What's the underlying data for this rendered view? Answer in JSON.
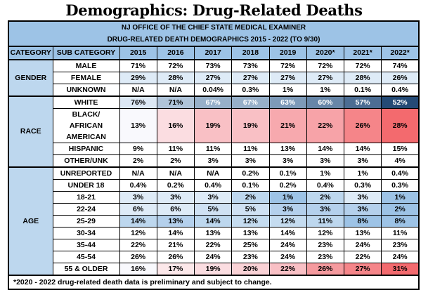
{
  "title": "Demographics: Drug-Related Deaths",
  "header": {
    "line1": "NJ OFFICE OF THE CHIEF STATE MEDICAL EXAMINER",
    "line2": "DRUG-RELATED DEATH DEMOGRAPHICS 2015 - 2022 (TO 9/30)"
  },
  "columns": [
    "CATEGORY",
    "SUB CATEGORY",
    "2015",
    "2016",
    "2017",
    "2018",
    "2019",
    "2020*",
    "2021*",
    "2022*"
  ],
  "groups": [
    {
      "category": "GENDER",
      "rows": [
        {
          "sub": "MALE",
          "values": [
            "71%",
            "72%",
            "73%",
            "73%",
            "72%",
            "72%",
            "72%",
            "74%"
          ],
          "colors": [
            "#ffffff",
            "#ffffff",
            "#ffffff",
            "#ffffff",
            "#ffffff",
            "#ffffff",
            "#ffffff",
            "#ffffff"
          ]
        },
        {
          "sub": "FEMALE",
          "values": [
            "29%",
            "28%",
            "27%",
            "27%",
            "27%",
            "27%",
            "28%",
            "26%"
          ],
          "colors": [
            "#deebf7",
            "#deebf7",
            "#deebf7",
            "#deebf7",
            "#deebf7",
            "#deebf7",
            "#deebf7",
            "#deebf7"
          ]
        },
        {
          "sub": "UNKNOWN",
          "values": [
            "N/A",
            "N/A",
            "0.04%",
            "0.3%",
            "1%",
            "1%",
            "0.1%",
            "0.4%"
          ],
          "colors": [
            "#ffffff",
            "#ffffff",
            "#ffffff",
            "#ffffff",
            "#ffffff",
            "#ffffff",
            "#ffffff",
            "#ffffff"
          ]
        }
      ]
    },
    {
      "category": "RACE",
      "rows": [
        {
          "sub": "WHITE",
          "values": [
            "76%",
            "71%",
            "67%",
            "67%",
            "63%",
            "60%",
            "57%",
            "52%"
          ],
          "colors": [
            "#dce8f4",
            "#afc4d9",
            "#97b0c9",
            "#97b0c9",
            "#7d9ab8",
            "#6786a8",
            "#4c6d93",
            "#244a75"
          ],
          "light": [
            false,
            false,
            true,
            true,
            true,
            true,
            true,
            true
          ]
        },
        {
          "sub": "BLACK/ AFRICAN AMERICAN",
          "values": [
            "13%",
            "16%",
            "19%",
            "19%",
            "21%",
            "22%",
            "26%",
            "28%"
          ],
          "colors": [
            "#f9f9fd",
            "#fbdde1",
            "#f9c0c5",
            "#f9c0c5",
            "#f7a9ae",
            "#f7a3a8",
            "#f58589",
            "#f36a6e"
          ]
        },
        {
          "sub": "HISPANIC",
          "values": [
            "9%",
            "11%",
            "11%",
            "11%",
            "13%",
            "14%",
            "14%",
            "15%"
          ],
          "colors": [
            "#ffffff",
            "#ffffff",
            "#ffffff",
            "#ffffff",
            "#ffffff",
            "#ffffff",
            "#ffffff",
            "#ffffff"
          ]
        },
        {
          "sub": "OTHER/UNK",
          "values": [
            "2%",
            "2%",
            "3%",
            "3%",
            "3%",
            "3%",
            "3%",
            "4%"
          ],
          "colors": [
            "#ffffff",
            "#ffffff",
            "#ffffff",
            "#ffffff",
            "#ffffff",
            "#ffffff",
            "#ffffff",
            "#ffffff"
          ]
        }
      ]
    },
    {
      "category": "AGE",
      "rows": [
        {
          "sub": "UNREPORTED",
          "values": [
            "N/A",
            "N/A",
            "N/A",
            "0.2%",
            "0.1%",
            "1%",
            "1%",
            "0.4%"
          ],
          "colors": [
            "#ffffff",
            "#ffffff",
            "#ffffff",
            "#ffffff",
            "#ffffff",
            "#ffffff",
            "#ffffff",
            "#ffffff"
          ]
        },
        {
          "sub": "UNDER 18",
          "values": [
            "0.4%",
            "0.2%",
            "0.4%",
            "0.1%",
            "0.2%",
            "0.4%",
            "0.3%",
            "0.3%"
          ],
          "colors": [
            "#ffffff",
            "#ffffff",
            "#ffffff",
            "#ffffff",
            "#ffffff",
            "#ffffff",
            "#ffffff",
            "#ffffff"
          ]
        },
        {
          "sub": "18-21",
          "values": [
            "3%",
            "3%",
            "3%",
            "2%",
            "1%",
            "2%",
            "3%",
            "1%"
          ],
          "colors": [
            "#deebf7",
            "#deebf7",
            "#deebf7",
            "#bdd7ee",
            "#9dc3e6",
            "#bdd7ee",
            "#deebf7",
            "#9dc3e6"
          ]
        },
        {
          "sub": "22-24",
          "values": [
            "6%",
            "6%",
            "5%",
            "5%",
            "3%",
            "3%",
            "3%",
            "2%"
          ],
          "colors": [
            "#deebf7",
            "#deebf7",
            "#cfe1f3",
            "#cfe1f3",
            "#b4d0ec",
            "#b4d0ec",
            "#b4d0ec",
            "#9dc3e6"
          ]
        },
        {
          "sub": "25-29",
          "values": [
            "14%",
            "13%",
            "14%",
            "12%",
            "12%",
            "11%",
            "8%",
            "8%"
          ],
          "colors": [
            "#bdd7ee",
            "#b4d0ec",
            "#bdd7ee",
            "#c5dcf0",
            "#c5dcf0",
            "#bdd7ee",
            "#9dc3e6",
            "#9dc3e6"
          ]
        },
        {
          "sub": "30-34",
          "values": [
            "12%",
            "14%",
            "13%",
            "13%",
            "14%",
            "12%",
            "13%",
            "11%"
          ],
          "colors": [
            "#ffffff",
            "#ffffff",
            "#ffffff",
            "#ffffff",
            "#ffffff",
            "#ffffff",
            "#ffffff",
            "#ffffff"
          ]
        },
        {
          "sub": "35-44",
          "values": [
            "22%",
            "21%",
            "22%",
            "25%",
            "24%",
            "23%",
            "24%",
            "23%"
          ],
          "colors": [
            "#ffffff",
            "#ffffff",
            "#ffffff",
            "#ffffff",
            "#ffffff",
            "#ffffff",
            "#ffffff",
            "#ffffff"
          ]
        },
        {
          "sub": "45-54",
          "values": [
            "26%",
            "26%",
            "24%",
            "23%",
            "24%",
            "23%",
            "22%",
            "24%"
          ],
          "colors": [
            "#ffffff",
            "#ffffff",
            "#ffffff",
            "#ffffff",
            "#ffffff",
            "#ffffff",
            "#ffffff",
            "#ffffff"
          ]
        },
        {
          "sub": "55 & OLDER",
          "values": [
            "16%",
            "17%",
            "19%",
            "20%",
            "22%",
            "26%",
            "27%",
            "31%"
          ],
          "colors": [
            "#f9f9fd",
            "#fce8ea",
            "#fbdde1",
            "#fad2d6",
            "#f9c0c5",
            "#f59a9e",
            "#f58589",
            "#f36a6e"
          ]
        }
      ]
    }
  ],
  "footnote": "*2020 - 2022 drug-related death data is preliminary and subject to change."
}
